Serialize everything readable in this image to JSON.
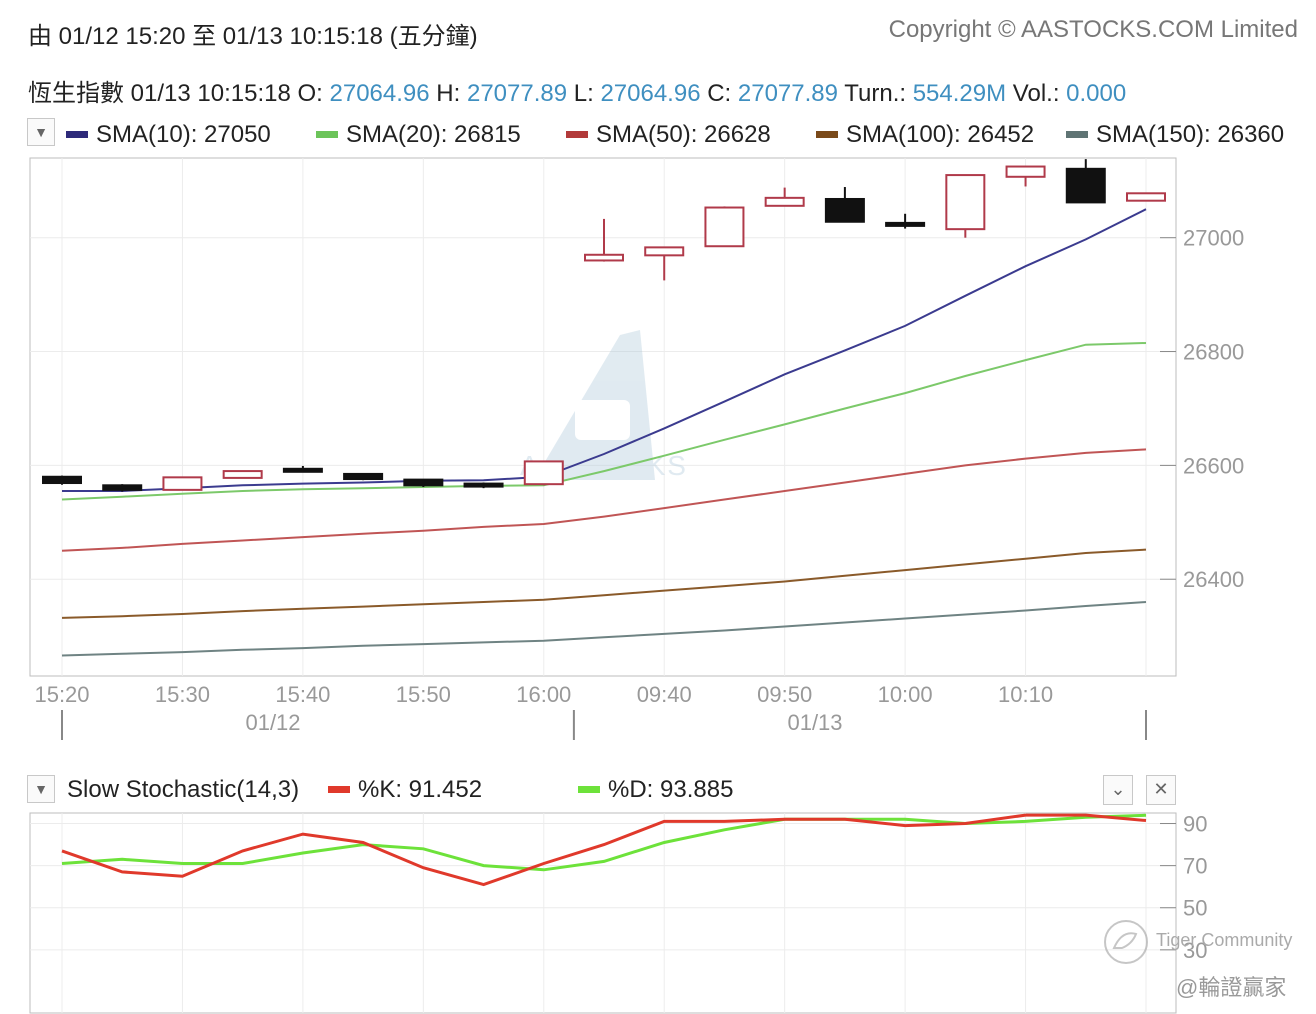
{
  "header": {
    "range_text": "由  01/12 15:20 至  01/13 10:15:18 (五分鐘)",
    "copyright": "Copyright © AASTOCKS.COM Limited"
  },
  "quote": {
    "name": "恆生指數",
    "datetime": "01/13 10:15:18",
    "o_label": "O:",
    "o_value": "27064.96",
    "h_label": "H:",
    "h_value": "27077.89",
    "l_label": "L:",
    "l_value": "27064.96",
    "c_label": "C:",
    "c_value": "27077.89",
    "turn_label": "Turn.:",
    "turn_value": "554.29M",
    "vol_label": "Vol.:",
    "vol_value": "0.000"
  },
  "sma_legend": [
    {
      "label": "SMA(10): 27050",
      "color": "#2e2a7a"
    },
    {
      "label": "SMA(20): 26815",
      "color": "#6cc45a"
    },
    {
      "label": "SMA(50): 26628",
      "color": "#b23a3a"
    },
    {
      "label": "SMA(100): 26452",
      "color": "#7a4a1a"
    },
    {
      "label": "SMA(150): 26360",
      "color": "#5f7474"
    }
  ],
  "stoch_legend": {
    "title": "Slow Stochastic(14,3)",
    "k_label": "%K: 91.452",
    "d_label": "%D: 93.885",
    "k_color": "#e0392b",
    "d_color": "#6de23a"
  },
  "watermark": {
    "logo_text": "AASTOCKS",
    "community": "Tiger Community",
    "author": "@輪證贏家"
  },
  "chart_data": [
    {
      "type": "candlestick",
      "title": "",
      "x_tick_labels": [
        "15:20",
        "15:30",
        "15:40",
        "15:50",
        "16:00",
        "09:40",
        "09:50",
        "10:00",
        "10:10"
      ],
      "date_labels": [
        "01/12",
        "01/13"
      ],
      "y_ticks": [
        26400,
        26600,
        26800,
        27000
      ],
      "ylim": [
        26230,
        27140
      ],
      "candles": [
        {
          "o": 26569,
          "h": 26582,
          "l": 26566,
          "c": 26580,
          "up": false
        },
        {
          "o": 26557,
          "h": 26567,
          "l": 26554,
          "c": 26565,
          "up": false
        },
        {
          "o": 26557,
          "h": 26579,
          "l": 26557,
          "c": 26579,
          "up": true
        },
        {
          "o": 26578,
          "h": 26591,
          "l": 26578,
          "c": 26590,
          "up": true
        },
        {
          "o": 26590,
          "h": 26599,
          "l": 26590,
          "c": 26594,
          "up": false
        },
        {
          "o": 26576,
          "h": 26585,
          "l": 26574,
          "c": 26585,
          "up": false
        },
        {
          "o": 26565,
          "h": 26575,
          "l": 26562,
          "c": 26575,
          "up": false
        },
        {
          "o": 26566,
          "h": 26570,
          "l": 26560,
          "c": 26568,
          "up": false
        },
        {
          "o": 26567,
          "h": 26608,
          "l": 26565,
          "c": 26607,
          "up": true
        },
        {
          "o": 26960,
          "h": 27033,
          "l": 26958,
          "c": 26970,
          "up": true
        },
        {
          "o": 26969,
          "h": 26983,
          "l": 26925,
          "c": 26983,
          "up": true
        },
        {
          "o": 26985,
          "h": 27055,
          "l": 26985,
          "c": 27053,
          "up": true
        },
        {
          "o": 27056,
          "h": 27088,
          "l": 27056,
          "c": 27070,
          "up": true
        },
        {
          "o": 27068,
          "h": 27089,
          "l": 27028,
          "c": 27028,
          "up": false
        },
        {
          "o": 27021,
          "h": 27042,
          "l": 27016,
          "c": 27026,
          "up": false
        },
        {
          "o": 27015,
          "h": 27111,
          "l": 27000,
          "c": 27110,
          "up": true
        },
        {
          "o": 27107,
          "h": 27125,
          "l": 27090,
          "c": 27125,
          "up": true
        },
        {
          "o": 27121,
          "h": 27138,
          "l": 27062,
          "c": 27062,
          "up": false
        },
        {
          "o": 27065,
          "h": 27078,
          "l": 27065,
          "c": 27078,
          "up": true
        }
      ],
      "series": [
        {
          "name": "SMA(10)",
          "color": "#3b3b8f",
          "values": [
            26555,
            26555,
            26560,
            26565,
            26568,
            26570,
            26573,
            26574,
            26580,
            26620,
            26665,
            26712,
            26760,
            26802,
            26845,
            26898,
            26950,
            26997,
            27050
          ]
        },
        {
          "name": "SMA(20)",
          "color": "#7cc96a",
          "values": [
            26540,
            26545,
            26550,
            26555,
            26558,
            26560,
            26562,
            26564,
            26565,
            26590,
            26617,
            26645,
            26672,
            26700,
            26727,
            26757,
            26785,
            26812,
            26815
          ]
        },
        {
          "name": "SMA(50)",
          "color": "#c05555",
          "values": [
            26450,
            26455,
            26462,
            26468,
            26474,
            26480,
            26485,
            26492,
            26497,
            26510,
            26525,
            26540,
            26555,
            26570,
            26585,
            26600,
            26612,
            26622,
            26628
          ]
        },
        {
          "name": "SMA(100)",
          "color": "#8a5a2a",
          "values": [
            26332,
            26335,
            26339,
            26344,
            26348,
            26352,
            26356,
            26360,
            26364,
            26372,
            26380,
            26388,
            26396,
            26406,
            26416,
            26426,
            26436,
            26446,
            26452
          ]
        },
        {
          "name": "SMA(150)",
          "color": "#6f8383",
          "values": [
            26266,
            26269,
            26272,
            26276,
            26279,
            26283,
            26286,
            26289,
            26292,
            26298,
            26304,
            26310,
            26317,
            26324,
            26331,
            26338,
            26345,
            26353,
            26360
          ]
        }
      ]
    },
    {
      "type": "line",
      "title": "Slow Stochastic(14,3)",
      "y_ticks": [
        30,
        50,
        70,
        90
      ],
      "ylim": [
        0,
        95
      ],
      "series": [
        {
          "name": "%K",
          "color": "#e0392b",
          "values": [
            77,
            67,
            65,
            77,
            85,
            81,
            69,
            61,
            71,
            80,
            91,
            91,
            92,
            92,
            89,
            90,
            94,
            94,
            91.452
          ]
        },
        {
          "name": "%D",
          "color": "#6de23a",
          "values": [
            71,
            73,
            71,
            71,
            76,
            80,
            78,
            70,
            68,
            72,
            81,
            87,
            92,
            92,
            92,
            90,
            91,
            93,
            93.885
          ]
        }
      ]
    }
  ]
}
